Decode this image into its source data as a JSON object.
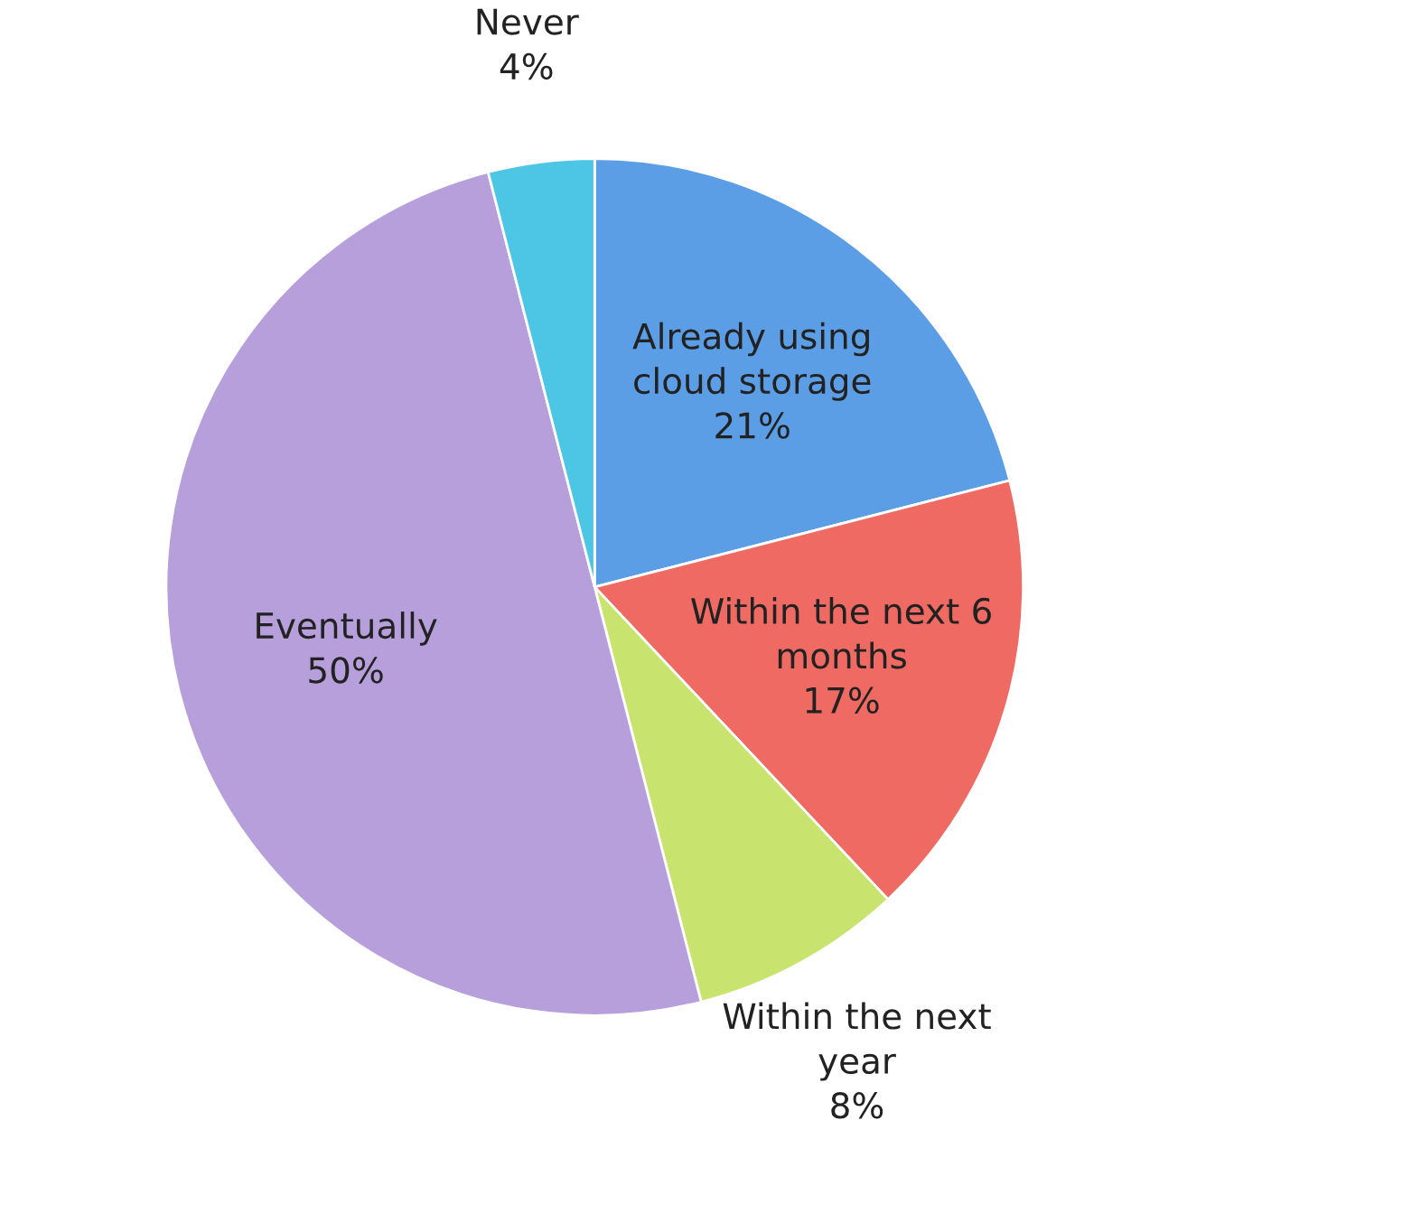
{
  "chart_data": {
    "type": "pie",
    "categories": [
      "Already using\ncloud storage",
      "Within the next 6\nmonths",
      "Within the next\nyear",
      "Eventually",
      "Never"
    ],
    "values": [
      21,
      17,
      8,
      50,
      4
    ],
    "value_labels": [
      "21%",
      "17%",
      "8%",
      "50%",
      "4%"
    ],
    "colors": [
      "#5b9ee6",
      "#ee6a62",
      "#c8e36e",
      "#b79fdc",
      "#4cc6e4"
    ],
    "legend": false
  }
}
